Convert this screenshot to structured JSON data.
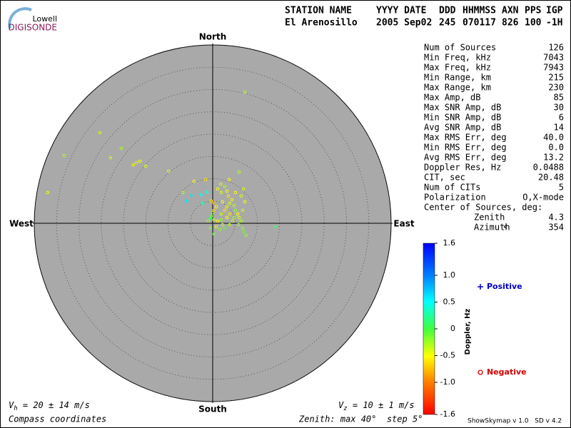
{
  "logo": {
    "top": "Lowell",
    "bottom": "DIGISONDE"
  },
  "header": {
    "columns": [
      {
        "label": "STATION NAME",
        "value": "El Arenosillo"
      },
      {
        "label": "YYYY DATE",
        "value": "2005 Sep02"
      },
      {
        "label": "DDD",
        "value": "245"
      },
      {
        "label": "HHMMSS",
        "value": "070117"
      },
      {
        "label": "AXN",
        "value": "826"
      },
      {
        "label": "PPS",
        "value": "100"
      },
      {
        "label": "IGP",
        "value": "-1H"
      }
    ]
  },
  "stats": {
    "rows": [
      [
        "Num of Sources",
        "126"
      ],
      [
        "Min Freq, kHz",
        "7043"
      ],
      [
        "Max Freq, kHz",
        "7943"
      ],
      [
        "Min Range, km",
        "215"
      ],
      [
        "Max Range, km",
        "230"
      ],
      [
        "Max Amp, dB",
        "85"
      ],
      [
        "Max SNR Amp, dB",
        "30"
      ],
      [
        "Min SNR Amp, dB",
        "6"
      ],
      [
        "Avg SNR Amp, dB",
        "14"
      ],
      [
        "Max RMS Err, deg",
        "40.0"
      ],
      [
        "Min RMS Err, deg",
        "0.0"
      ],
      [
        "Avg RMS Err, deg",
        "13.2"
      ],
      [
        "Doppler Res, Hz",
        "0.0488"
      ],
      [
        "CIT, sec",
        "20.48"
      ],
      [
        "Num of CITs",
        "5"
      ],
      [
        "Polarization",
        "O,X-mode"
      ]
    ],
    "center_title": "Center of Sources, deg:",
    "center_rows": [
      [
        "Zenith",
        "4.3"
      ],
      [
        "Azimuth",
        "354"
      ]
    ]
  },
  "chart_data": {
    "type": "skymap",
    "directions": {
      "north": "North",
      "south": "South",
      "west": "West",
      "east": "East"
    },
    "rlim": [
      0,
      40
    ],
    "rticks": [
      5,
      10,
      15,
      20,
      25,
      30,
      35,
      40
    ],
    "clim": [
      -1.6,
      1.6
    ],
    "cticks": [
      1.6,
      {
        "value": 1,
        "label": "1.0"
      },
      0.5,
      0,
      -0.5,
      {
        "value": -1,
        "label": "-1.0"
      },
      -1.6
    ],
    "colorbar_label": "Doppler, Hz",
    "series": [
      {
        "name": "Positive",
        "marker": "+",
        "legend_color": "#0000c0",
        "x": [
          14.1,
          -4.8,
          -2.6,
          -5.8,
          -1.3,
          -2.2,
          -0.6
        ],
        "y": [
          -0.8,
          6.2,
          6.4,
          5.0,
          7.0,
          4.5,
          1.1
        ],
        "doppler": [
          0.1,
          0.6,
          0.5,
          0.6,
          0.4,
          0.3,
          0.1
        ]
      },
      {
        "name": "Negative",
        "marker": "o",
        "legend_color": "#d00000",
        "x": [
          7.2,
          -25.3,
          -33.3,
          -37,
          -22.9,
          -20.5,
          -17.8,
          -17.1,
          -16.3,
          -15,
          -9.9,
          -6.7,
          -4.2,
          -1.6,
          1.8,
          5.9,
          3.7,
          6.9,
          0.3,
          0.8,
          0,
          -0.3,
          0.3,
          1.1,
          1.9,
          2.7,
          3.2,
          3.8,
          4.3,
          4.8,
          5.1,
          5.6,
          5.9,
          6.4,
          6.7,
          7,
          7.5,
          2.2,
          2.7,
          1.6,
          0.8,
          -0.5,
          3.2,
          3.8,
          4.5,
          5.1,
          3.5,
          1.9,
          1.1,
          2.7,
          6.4,
          7.2,
          0.3,
          1.9,
          3.8,
          5.8,
          0.3,
          -1,
          -0.3,
          6.7,
          4.8,
          2.2,
          3.2
        ],
        "y": [
          29.4,
          20.3,
          15.2,
          6.9,
          14.7,
          16.8,
          13.1,
          13.6,
          13.9,
          12.8,
          11.7,
          6.9,
          9.4,
          9.8,
          8.8,
          11.5,
          9.8,
          7.7,
          4.5,
          3.7,
          2.4,
          1.6,
          0.8,
          0.5,
          2.1,
          2.9,
          3.7,
          4.5,
          5.3,
          4,
          2.9,
          2.1,
          1.3,
          0.5,
          -1.1,
          -1.9,
          -2.7,
          -0.3,
          -1.1,
          -1.4,
          -0.8,
          -1.1,
          1.3,
          2.1,
          0.5,
          6.9,
          6.1,
          6.9,
          7.7,
          8.2,
          6.1,
          4.8,
          2.9,
          0.8,
          -0.3,
          -0.3,
          -2.4,
          0.5,
          5,
          2.9,
          1.3,
          4.8,
          7.2
        ],
        "doppler": [
          -0.3,
          -0.4,
          -0.3,
          -0.5,
          -0.4,
          -0.3,
          -0.5,
          -0.4,
          -0.5,
          -0.4,
          -0.4,
          -0.3,
          -0.5,
          -0.6,
          -0.4,
          -0.3,
          -0.5,
          -0.4,
          -0.8,
          -0.5,
          -0.2,
          -0.1,
          -0.3,
          -0.5,
          -0.4,
          -0.6,
          -0.5,
          -0.4,
          -0.5,
          -0.3,
          -0.2,
          -0.5,
          -0.4,
          -0.3,
          -0.2,
          -0.1,
          -0.2,
          -0.3,
          -0.1,
          -0.2,
          -0.4,
          -0.2,
          -0.5,
          -0.6,
          -0.3,
          -0.5,
          -0.6,
          -0.4,
          -0.5,
          -0.3,
          -0.4,
          -0.5,
          -0.7,
          -0.2,
          -0.3,
          -0.2,
          -0.1,
          -0.2,
          -0.6,
          -0.4,
          -0.3,
          -0.5,
          -0.5
        ]
      }
    ]
  },
  "footer": {
    "vh": {
      "symbol": "V",
      "sub": "h",
      "text": " = 20 ± 14 m/s"
    },
    "vz": {
      "symbol": "V",
      "sub": "z",
      "text": " = 10 ± 1 m/s"
    },
    "coords": "Compass coordinates",
    "zenith": "Zenith: max 40°  step 5°",
    "version": "ShowSkymap v 1.0   SD v 4.2"
  }
}
